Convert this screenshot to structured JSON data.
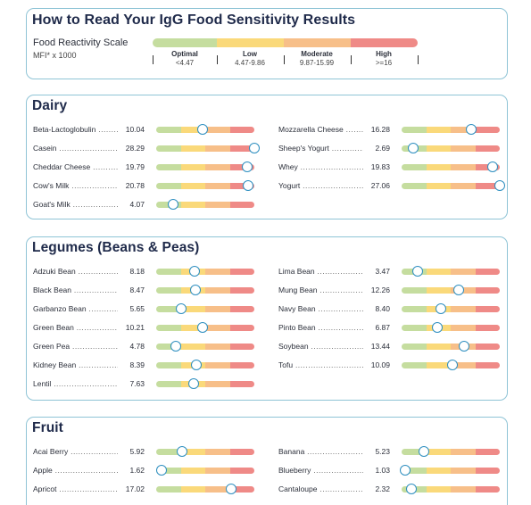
{
  "legend": {
    "title": "How to Read Your IgG Food Sensitivity Results",
    "scale_label": "Food Reactivity Scale",
    "scale_unit": "MFI* x 1000",
    "ranges": [
      {
        "name": "Optimal",
        "range": "<4.47"
      },
      {
        "name": "Low",
        "range": "4.47-9.86"
      },
      {
        "name": "Moderate",
        "range": "9.87-15.99"
      },
      {
        "name": "High",
        "range": ">=16"
      }
    ],
    "colors": {
      "optimal": "#c5dd9f",
      "low": "#fad97a",
      "moderate": "#f7bf89",
      "high": "#ef8a87"
    }
  },
  "sections": [
    {
      "title": "Dairy",
      "items": [
        {
          "name": "Beta-Lactoglobulin",
          "value": "10.04",
          "level": 0.47
        },
        {
          "name": "Mozzarella Cheese",
          "value": "16.28",
          "level": 0.71
        },
        {
          "name": "Casein",
          "value": "28.29",
          "level": 1.0
        },
        {
          "name": "Sheep's Yogurt",
          "value": "2.69",
          "level": 0.12
        },
        {
          "name": "Cheddar Cheese",
          "value": "19.79",
          "level": 0.93
        },
        {
          "name": "Whey",
          "value": "19.83",
          "level": 0.93
        },
        {
          "name": "Cow's Milk",
          "value": "20.78",
          "level": 0.94
        },
        {
          "name": "Yogurt",
          "value": "27.06",
          "level": 1.0
        },
        {
          "name": "Goat's Milk",
          "value": "4.07",
          "level": 0.17
        }
      ]
    },
    {
      "title": "Legumes (Beans & Peas)",
      "items": [
        {
          "name": "Adzuki Bean",
          "value": "8.18",
          "level": 0.39
        },
        {
          "name": "Lima Bean",
          "value": "3.47",
          "level": 0.16
        },
        {
          "name": "Black Bean",
          "value": "8.47",
          "level": 0.4
        },
        {
          "name": "Mung Bean",
          "value": "12.26",
          "level": 0.58
        },
        {
          "name": "Garbanzo Bean",
          "value": "5.65",
          "level": 0.25
        },
        {
          "name": "Navy Bean",
          "value": "8.40",
          "level": 0.4
        },
        {
          "name": "Green Bean",
          "value": "10.21",
          "level": 0.47
        },
        {
          "name": "Pinto Bean",
          "value": "6.87",
          "level": 0.36
        },
        {
          "name": "Green Pea",
          "value": "4.78",
          "level": 0.2
        },
        {
          "name": "Soybean",
          "value": "13.44",
          "level": 0.64
        },
        {
          "name": "Kidney Bean",
          "value": "8.39",
          "level": 0.41
        },
        {
          "name": "Tofu",
          "value": "10.09",
          "level": 0.52
        },
        {
          "name": "Lentil",
          "value": "7.63",
          "level": 0.38
        }
      ]
    },
    {
      "title": "Fruit",
      "items": [
        {
          "name": "Acai Berry",
          "value": "5.92",
          "level": 0.26
        },
        {
          "name": "Banana",
          "value": "5.23",
          "level": 0.23
        },
        {
          "name": "Apple",
          "value": "1.62",
          "level": 0.05
        },
        {
          "name": "Blueberry",
          "value": "1.03",
          "level": 0.04
        },
        {
          "name": "Apricot",
          "value": "17.02",
          "level": 0.76
        },
        {
          "name": "Cantaloupe",
          "value": "2.32",
          "level": 0.1
        }
      ]
    }
  ]
}
